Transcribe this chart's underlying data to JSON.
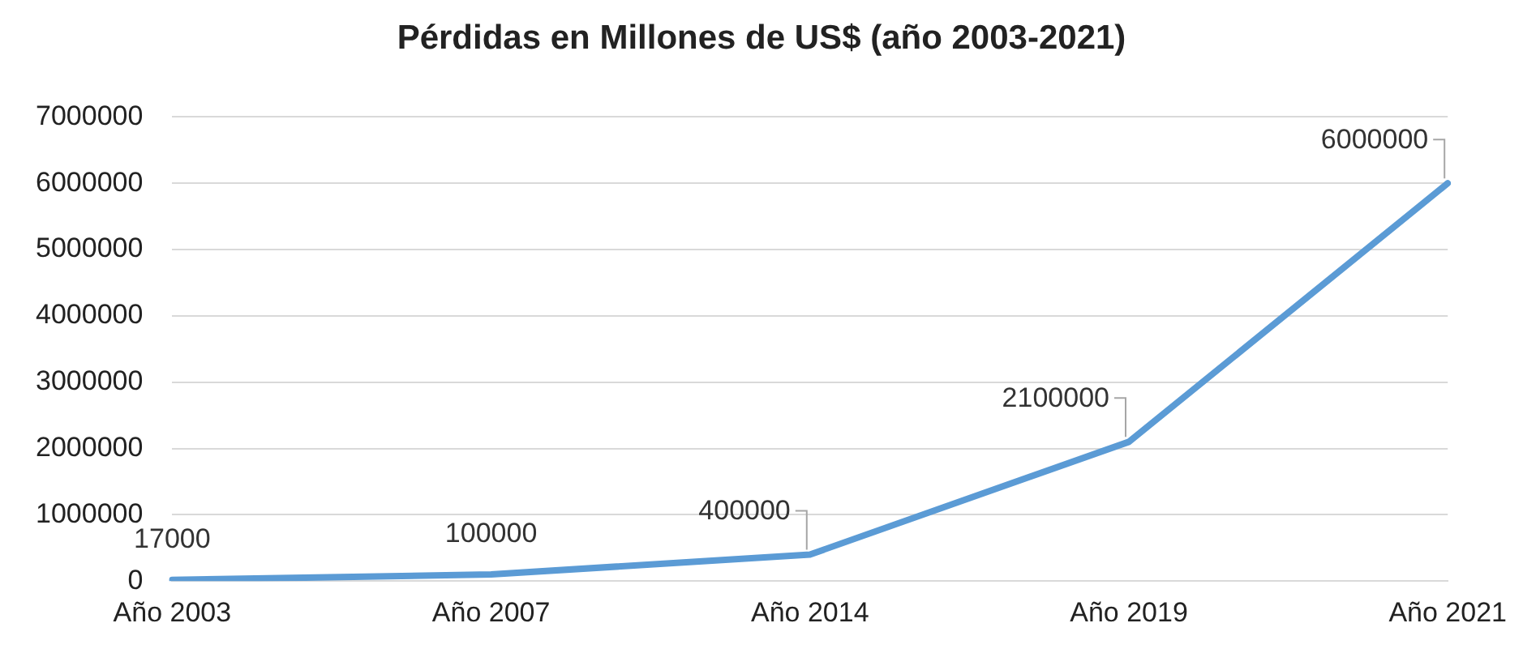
{
  "chart_data": {
    "type": "line",
    "title": "Pérdidas en Millones de US$ (año 2003-2021)",
    "categories": [
      "Año 2003",
      "Año 2007",
      "Año 2014",
      "Año 2019",
      "Año 2021"
    ],
    "series": [
      {
        "color": "#5b9bd5",
        "values": [
          17000,
          100000,
          400000,
          2100000,
          6000000
        ]
      }
    ],
    "ylim": [
      0,
      7000000
    ],
    "yticks": [
      0,
      1000000,
      2000000,
      3000000,
      4000000,
      5000000,
      6000000,
      7000000
    ],
    "grid": "y",
    "legend": false,
    "marker": "none",
    "line_style": "solid",
    "data_labels": true
  }
}
